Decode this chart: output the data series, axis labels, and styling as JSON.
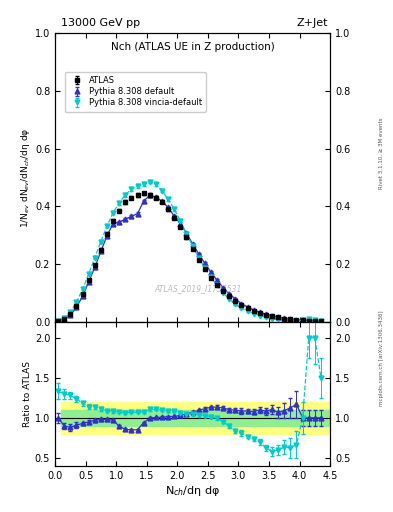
{
  "title_top": "13000 GeV pp",
  "title_right": "Z+Jet",
  "plot_title": "Nch (ATLAS UE in Z production)",
  "ylabel_main": "1/N$_{ev}$ dN$_{ev}$/dN$_{ch}$/dη dφ",
  "ylabel_ratio": "Ratio to ATLAS",
  "xlabel": "N$_{ch}$/dη dφ",
  "watermark": "ATLAS_2019_I1736531",
  "right_label": "mcplots.cern.ch [arXiv:1306.3436]",
  "rivet_label": "Rivet 3.1.10, ≥ 3M events",
  "atlas_x": [
    0.05,
    0.15,
    0.25,
    0.35,
    0.45,
    0.55,
    0.65,
    0.75,
    0.85,
    0.95,
    1.05,
    1.15,
    1.25,
    1.35,
    1.45,
    1.55,
    1.65,
    1.75,
    1.85,
    1.95,
    2.05,
    2.15,
    2.25,
    2.35,
    2.45,
    2.55,
    2.65,
    2.75,
    2.85,
    2.95,
    3.05,
    3.15,
    3.25,
    3.35,
    3.45,
    3.55,
    3.65,
    3.75,
    3.85,
    3.95,
    4.05,
    4.15,
    4.25,
    4.35
  ],
  "atlas_y": [
    0.003,
    0.01,
    0.025,
    0.055,
    0.095,
    0.145,
    0.195,
    0.25,
    0.305,
    0.35,
    0.385,
    0.415,
    0.43,
    0.44,
    0.445,
    0.44,
    0.43,
    0.415,
    0.39,
    0.36,
    0.33,
    0.292,
    0.252,
    0.215,
    0.182,
    0.152,
    0.127,
    0.105,
    0.088,
    0.072,
    0.058,
    0.047,
    0.038,
    0.03,
    0.024,
    0.019,
    0.015,
    0.011,
    0.008,
    0.006,
    0.005,
    0.004,
    0.003,
    0.002
  ],
  "atlas_yerr": [
    0.0003,
    0.001,
    0.001,
    0.002,
    0.003,
    0.004,
    0.004,
    0.005,
    0.005,
    0.006,
    0.006,
    0.006,
    0.006,
    0.006,
    0.006,
    0.006,
    0.006,
    0.005,
    0.005,
    0.005,
    0.005,
    0.004,
    0.004,
    0.004,
    0.003,
    0.003,
    0.003,
    0.002,
    0.002,
    0.002,
    0.002,
    0.001,
    0.001,
    0.001,
    0.001,
    0.001,
    0.001,
    0.001,
    0.001,
    0.001,
    0.0005,
    0.0004,
    0.0003,
    0.0002
  ],
  "pythia_x": [
    0.05,
    0.15,
    0.25,
    0.35,
    0.45,
    0.55,
    0.65,
    0.75,
    0.85,
    0.95,
    1.05,
    1.15,
    1.25,
    1.35,
    1.45,
    1.55,
    1.65,
    1.75,
    1.85,
    1.95,
    2.05,
    2.15,
    2.25,
    2.35,
    2.45,
    2.55,
    2.65,
    2.75,
    2.85,
    2.95,
    3.05,
    3.15,
    3.25,
    3.35,
    3.45,
    3.55,
    3.65,
    3.75,
    3.85,
    3.95,
    4.05,
    4.15,
    4.25,
    4.35
  ],
  "pythia_y": [
    0.003,
    0.009,
    0.022,
    0.05,
    0.088,
    0.138,
    0.188,
    0.244,
    0.298,
    0.34,
    0.345,
    0.356,
    0.365,
    0.375,
    0.418,
    0.438,
    0.432,
    0.418,
    0.396,
    0.366,
    0.34,
    0.307,
    0.27,
    0.235,
    0.203,
    0.172,
    0.144,
    0.118,
    0.097,
    0.079,
    0.063,
    0.051,
    0.041,
    0.033,
    0.026,
    0.021,
    0.016,
    0.012,
    0.009,
    0.007,
    0.005,
    0.004,
    0.003,
    0.002
  ],
  "pythia_yerr": [
    0.0002,
    0.0004,
    0.001,
    0.002,
    0.002,
    0.003,
    0.004,
    0.004,
    0.005,
    0.005,
    0.005,
    0.005,
    0.005,
    0.005,
    0.005,
    0.005,
    0.005,
    0.005,
    0.005,
    0.004,
    0.004,
    0.004,
    0.004,
    0.003,
    0.003,
    0.003,
    0.003,
    0.002,
    0.002,
    0.002,
    0.002,
    0.001,
    0.001,
    0.001,
    0.001,
    0.001,
    0.001,
    0.001,
    0.001,
    0.001,
    0.0005,
    0.0004,
    0.0003,
    0.0002
  ],
  "vincia_x": [
    0.05,
    0.15,
    0.25,
    0.35,
    0.45,
    0.55,
    0.65,
    0.75,
    0.85,
    0.95,
    1.05,
    1.15,
    1.25,
    1.35,
    1.45,
    1.55,
    1.65,
    1.75,
    1.85,
    1.95,
    2.05,
    2.15,
    2.25,
    2.35,
    2.45,
    2.55,
    2.65,
    2.75,
    2.85,
    2.95,
    3.05,
    3.15,
    3.25,
    3.35,
    3.45,
    3.55,
    3.65,
    3.75,
    3.85,
    3.95,
    4.05,
    4.15,
    4.25,
    4.35
  ],
  "vincia_y": [
    0.004,
    0.013,
    0.032,
    0.068,
    0.112,
    0.165,
    0.222,
    0.278,
    0.332,
    0.378,
    0.412,
    0.44,
    0.46,
    0.47,
    0.478,
    0.486,
    0.476,
    0.454,
    0.425,
    0.39,
    0.35,
    0.305,
    0.263,
    0.222,
    0.186,
    0.154,
    0.126,
    0.1,
    0.079,
    0.06,
    0.047,
    0.036,
    0.028,
    0.021,
    0.015,
    0.011,
    0.009,
    0.007,
    0.005,
    0.004,
    0.005,
    0.008,
    0.006,
    0.003
  ],
  "vincia_yerr": [
    0.0003,
    0.0006,
    0.001,
    0.002,
    0.003,
    0.004,
    0.005,
    0.005,
    0.005,
    0.006,
    0.006,
    0.006,
    0.006,
    0.006,
    0.006,
    0.006,
    0.006,
    0.006,
    0.005,
    0.005,
    0.005,
    0.004,
    0.004,
    0.004,
    0.003,
    0.003,
    0.003,
    0.002,
    0.002,
    0.002,
    0.002,
    0.001,
    0.001,
    0.001,
    0.001,
    0.001,
    0.001,
    0.001,
    0.001,
    0.001,
    0.001,
    0.001,
    0.001,
    0.0005
  ],
  "atlas_color": "#000000",
  "pythia_color": "#3030cc",
  "vincia_color": "#00cccc",
  "band_green": "#90ee90",
  "band_yellow": "#ffff80",
  "xlim": [
    0,
    4.5
  ],
  "ylim_main": [
    0.0,
    1.0
  ],
  "ylim_ratio": [
    0.4,
    2.2
  ],
  "yticks_main": [
    0.0,
    0.2,
    0.4,
    0.6,
    0.8,
    1.0
  ],
  "yticks_ratio": [
    0.5,
    1.0,
    1.5,
    2.0
  ],
  "ratio_pythia": [
    1.0,
    0.9,
    0.88,
    0.91,
    0.93,
    0.95,
    0.97,
    0.98,
    0.98,
    0.97,
    0.896,
    0.857,
    0.849,
    0.852,
    0.94,
    0.995,
    1.005,
    1.007,
    1.015,
    1.017,
    1.03,
    1.051,
    1.071,
    1.093,
    1.115,
    1.132,
    1.134,
    1.124,
    1.102,
    1.097,
    1.086,
    1.085,
    1.079,
    1.1,
    1.083,
    1.105,
    1.067,
    1.091,
    1.125,
    1.167,
    1.0,
    1.0,
    1.0,
    1.0
  ],
  "ratio_vincia": [
    1.33,
    1.3,
    1.28,
    1.24,
    1.18,
    1.14,
    1.14,
    1.11,
    1.09,
    1.08,
    1.07,
    1.06,
    1.07,
    1.07,
    1.075,
    1.105,
    1.107,
    1.094,
    1.09,
    1.083,
    1.061,
    1.045,
    1.044,
    1.033,
    1.022,
    1.013,
    0.992,
    0.952,
    0.898,
    0.833,
    0.81,
    0.766,
    0.737,
    0.7,
    0.625,
    0.579,
    0.6,
    0.636,
    0.625,
    0.667,
    1.0,
    2.0,
    2.0,
    1.5
  ],
  "band_x_lo": 0.1,
  "band_x_hi": 4.5,
  "green_lo": 0.9,
  "green_hi": 1.1,
  "yellow_lo": 0.8,
  "yellow_hi": 1.2
}
